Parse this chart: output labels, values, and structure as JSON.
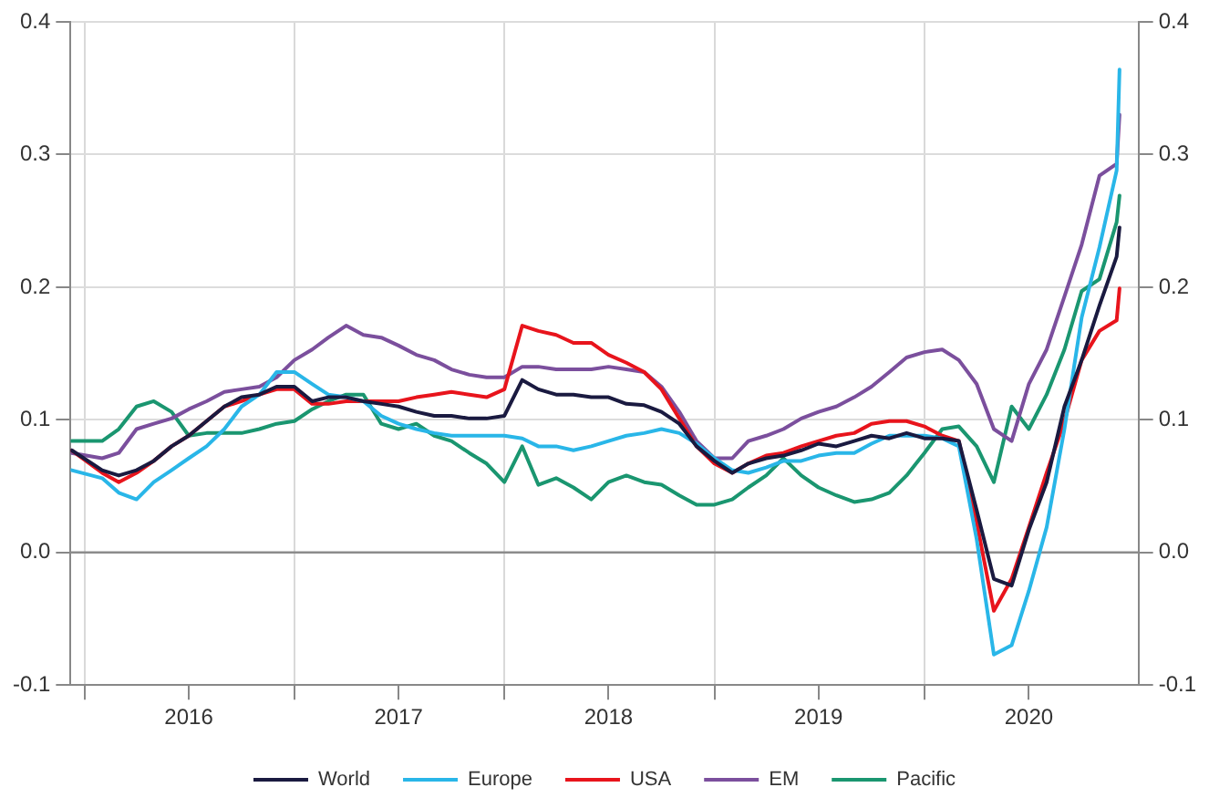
{
  "chart_data": {
    "type": "line",
    "x": [
      "2015-12-10",
      "2016-02-01",
      "2016-03-01",
      "2016-04-01",
      "2016-05-01",
      "2016-06-01",
      "2016-07-01",
      "2016-08-01",
      "2016-09-01",
      "2016-10-01",
      "2016-11-01",
      "2016-12-01",
      "2017-01-01",
      "2017-02-01",
      "2017-03-01",
      "2017-04-01",
      "2017-05-01",
      "2017-06-01",
      "2017-07-01",
      "2017-08-01",
      "2017-09-01",
      "2017-10-01",
      "2017-11-01",
      "2017-12-01",
      "2018-01-01",
      "2018-02-01",
      "2018-03-01",
      "2018-04-01",
      "2018-05-01",
      "2018-06-01",
      "2018-07-01",
      "2018-08-01",
      "2018-09-01",
      "2018-10-01",
      "2018-11-01",
      "2018-12-01",
      "2019-01-01",
      "2019-02-01",
      "2019-03-01",
      "2019-04-01",
      "2019-05-01",
      "2019-06-01",
      "2019-07-01",
      "2019-08-01",
      "2019-09-01",
      "2019-10-01",
      "2019-11-01",
      "2019-12-01",
      "2020-01-01",
      "2020-02-01",
      "2020-03-01",
      "2020-04-01",
      "2020-05-01",
      "2020-06-01",
      "2020-07-01",
      "2020-08-01",
      "2020-09-01",
      "2020-10-01",
      "2020-11-01",
      "2020-12-01",
      "2020-12-06"
    ],
    "series": [
      {
        "name": "World",
        "color": "#1a1a40",
        "values": [
          0.077,
          0.062,
          0.058,
          0.062,
          0.069,
          0.08,
          0.088,
          0.099,
          0.11,
          0.117,
          0.119,
          0.125,
          0.125,
          0.114,
          0.117,
          0.117,
          0.114,
          0.112,
          0.11,
          0.106,
          0.103,
          0.103,
          0.101,
          0.101,
          0.103,
          0.13,
          0.123,
          0.119,
          0.119,
          0.117,
          0.117,
          0.112,
          0.111,
          0.106,
          0.097,
          0.08,
          0.069,
          0.06,
          0.067,
          0.071,
          0.073,
          0.077,
          0.082,
          0.08,
          0.084,
          0.088,
          0.086,
          0.09,
          0.086,
          0.086,
          0.084,
          0.032,
          -0.02,
          -0.025,
          0.017,
          0.053,
          0.11,
          0.145,
          0.186,
          0.223,
          0.245
        ]
      },
      {
        "name": "Europe",
        "color": "#29b6e8",
        "values": [
          0.062,
          0.056,
          0.045,
          0.04,
          0.053,
          0.062,
          0.071,
          0.08,
          0.093,
          0.11,
          0.119,
          0.136,
          0.136,
          0.127,
          0.119,
          0.117,
          0.114,
          0.103,
          0.097,
          0.093,
          0.09,
          0.088,
          0.088,
          0.088,
          0.088,
          0.086,
          0.08,
          0.08,
          0.077,
          0.08,
          0.084,
          0.088,
          0.09,
          0.093,
          0.09,
          0.082,
          0.071,
          0.062,
          0.06,
          0.064,
          0.069,
          0.069,
          0.073,
          0.075,
          0.075,
          0.082,
          0.088,
          0.088,
          0.088,
          0.086,
          0.08,
          0.01,
          -0.077,
          -0.07,
          -0.029,
          0.019,
          0.093,
          0.177,
          0.23,
          0.288,
          0.364
        ]
      },
      {
        "name": "USA",
        "color": "#e8141c",
        "values": [
          0.077,
          0.06,
          0.053,
          0.06,
          0.069,
          0.08,
          0.088,
          0.099,
          0.11,
          0.114,
          0.119,
          0.123,
          0.123,
          0.112,
          0.112,
          0.114,
          0.114,
          0.114,
          0.114,
          0.117,
          0.119,
          0.121,
          0.119,
          0.117,
          0.123,
          0.171,
          0.167,
          0.164,
          0.158,
          0.158,
          0.149,
          0.143,
          0.136,
          0.123,
          0.101,
          0.08,
          0.067,
          0.06,
          0.067,
          0.073,
          0.075,
          0.08,
          0.084,
          0.088,
          0.09,
          0.097,
          0.099,
          0.099,
          0.095,
          0.088,
          0.084,
          0.023,
          -0.044,
          -0.02,
          0.019,
          0.06,
          0.099,
          0.145,
          0.167,
          0.175,
          0.199
        ]
      },
      {
        "name": "EM",
        "color": "#7b4f9d",
        "values": [
          0.075,
          0.071,
          0.075,
          0.093,
          0.097,
          0.101,
          0.108,
          0.114,
          0.121,
          0.123,
          0.125,
          0.132,
          0.145,
          0.153,
          0.162,
          0.171,
          0.164,
          0.162,
          0.156,
          0.149,
          0.145,
          0.138,
          0.134,
          0.132,
          0.132,
          0.14,
          0.14,
          0.138,
          0.138,
          0.138,
          0.14,
          0.138,
          0.136,
          0.125,
          0.106,
          0.084,
          0.071,
          0.071,
          0.084,
          0.088,
          0.093,
          0.101,
          0.106,
          0.11,
          0.117,
          0.125,
          0.136,
          0.147,
          0.151,
          0.153,
          0.145,
          0.127,
          0.093,
          0.084,
          0.127,
          0.153,
          0.193,
          0.232,
          0.284,
          0.293,
          0.33
        ]
      },
      {
        "name": "Pacific",
        "color": "#1a9670",
        "values": [
          0.084,
          0.084,
          0.093,
          0.11,
          0.114,
          0.106,
          0.088,
          0.09,
          0.09,
          0.09,
          0.093,
          0.097,
          0.099,
          0.108,
          0.114,
          0.119,
          0.119,
          0.097,
          0.093,
          0.097,
          0.088,
          0.084,
          0.075,
          0.067,
          0.053,
          0.08,
          0.051,
          0.056,
          0.049,
          0.04,
          0.053,
          0.058,
          0.053,
          0.051,
          0.043,
          0.036,
          0.036,
          0.04,
          0.049,
          0.058,
          0.071,
          0.058,
          0.049,
          0.043,
          0.038,
          0.04,
          0.045,
          0.058,
          0.075,
          0.093,
          0.095,
          0.08,
          0.053,
          0.11,
          0.093,
          0.119,
          0.153,
          0.197,
          0.206,
          0.249,
          0.269
        ]
      }
    ],
    "xlim": [
      "2015-12-08",
      "2021-01-08"
    ],
    "xticks": [
      {
        "value": "2016-01-01",
        "label": null
      },
      {
        "value": "2016-07-01",
        "label": "2016"
      },
      {
        "value": "2017-01-01",
        "label": null
      },
      {
        "value": "2017-07-01",
        "label": "2017"
      },
      {
        "value": "2018-01-01",
        "label": null
      },
      {
        "value": "2018-07-01",
        "label": "2018"
      },
      {
        "value": "2019-01-01",
        "label": null
      },
      {
        "value": "2019-07-01",
        "label": "2019"
      },
      {
        "value": "2020-01-01",
        "label": null
      },
      {
        "value": "2020-07-01",
        "label": "2020"
      }
    ],
    "ylim": [
      -0.1,
      0.4
    ],
    "yticks": [
      {
        "value": -0.1,
        "label": "-0.1"
      },
      {
        "value": 0,
        "label": "0.0"
      },
      {
        "value": 0.1,
        "label": "0.1"
      },
      {
        "value": 0.2,
        "label": "0.2"
      },
      {
        "value": 0.3,
        "label": "0.3"
      },
      {
        "value": 0.4,
        "label": "0.4"
      }
    ],
    "y2lim": [
      -0.1,
      0.4
    ],
    "y2ticks": [
      {
        "value": -0.1,
        "label": "-0.1"
      },
      {
        "value": 0,
        "label": "0.0"
      },
      {
        "value": 0.1,
        "label": "0.1"
      },
      {
        "value": 0.2,
        "label": "0.2"
      },
      {
        "value": 0.3,
        "label": "0.3"
      },
      {
        "value": 0.4,
        "label": "0.4"
      }
    ],
    "ref_lines": [
      {
        "axis": "y",
        "value": 0,
        "color": "#8c8c8c"
      }
    ],
    "grid": true,
    "legend": "bottom",
    "marker": "none",
    "line_style": "solid"
  }
}
